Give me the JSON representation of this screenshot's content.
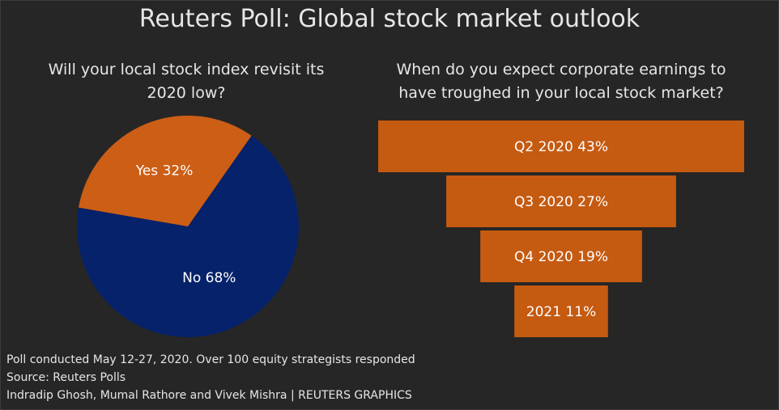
{
  "title": "Reuters Poll: Global stock market outlook",
  "footer": {
    "line1": "Poll conducted May 12-27, 2020. Over 100 equity strategists responded",
    "line2": "Source: Reuters Polls",
    "line3": "Indradip Ghosh, Mumal Rathore and Vivek Mishra | REUTERS GRAPHICS"
  },
  "chart_data": [
    {
      "type": "pie",
      "title_line1": "Will your local stock index revisit its",
      "title_line2": "2020 low?",
      "slices": [
        {
          "label": "Yes 32%",
          "category": "Yes",
          "value": 32,
          "color": "#cd5e16"
        },
        {
          "label": "No 68%",
          "category": "No",
          "value": 68,
          "color": "#06226a"
        }
      ]
    },
    {
      "type": "bar",
      "style": "funnel",
      "title_line1": "When do you expect corporate earnings to",
      "title_line2": "have troughed in your local stock market?",
      "color": "#c55a11",
      "bars": [
        {
          "label": "Q2 2020 43%",
          "category": "Q2 2020",
          "value": 43
        },
        {
          "label": "Q3 2020 27%",
          "category": "Q3 2020",
          "value": 27
        },
        {
          "label": "Q4 2020 19%",
          "category": "Q4 2020",
          "value": 19
        },
        {
          "label": "2021 11%",
          "category": "2021",
          "value": 11
        }
      ]
    }
  ]
}
